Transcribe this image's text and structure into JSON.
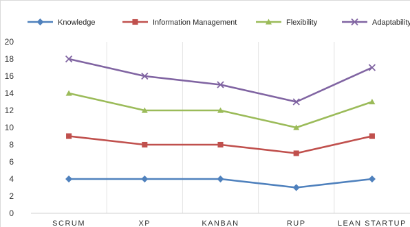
{
  "chart_data": {
    "type": "line",
    "categories": [
      "SCRUM",
      "XP",
      "KANBAN",
      "RUP",
      "LEAN STARTUP"
    ],
    "series": [
      {
        "name": "Knowledge",
        "values": [
          4,
          4,
          4,
          3,
          4
        ],
        "color": "#4f81bd",
        "marker": "diamond"
      },
      {
        "name": "Information Management",
        "values": [
          9,
          8,
          8,
          7,
          9
        ],
        "color": "#c0504d",
        "marker": "square"
      },
      {
        "name": "Flexibility",
        "values": [
          14,
          12,
          12,
          10,
          13
        ],
        "color": "#9bbb59",
        "marker": "triangle"
      },
      {
        "name": "Adaptability",
        "values": [
          18,
          16,
          15,
          13,
          17
        ],
        "color": "#8064a2",
        "marker": "x"
      }
    ],
    "y_ticks": [
      0,
      2,
      4,
      6,
      8,
      10,
      12,
      14,
      16,
      18,
      20
    ],
    "ylim": [
      0,
      20
    ],
    "legend_position": "top",
    "grid": "vertical category separators"
  }
}
